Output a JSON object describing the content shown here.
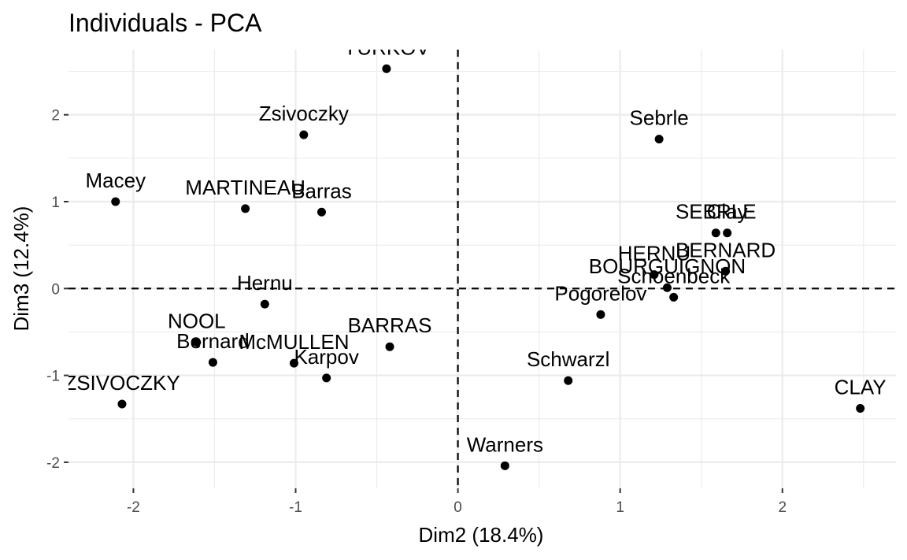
{
  "chart_data": {
    "type": "scatter",
    "title": "Individuals - PCA",
    "xlabel": "Dim2 (18.4%)",
    "ylabel": "Dim3 (12.4%)",
    "xlim": [
      -2.4,
      2.7
    ],
    "ylim": [
      -2.3,
      2.75
    ],
    "x_ticks": [
      -2,
      -1,
      0,
      1,
      2
    ],
    "y_ticks": [
      -2,
      -1,
      0,
      1,
      2
    ],
    "reference_lines": {
      "x": 0,
      "y": 0,
      "style": "dashed"
    },
    "grid": true,
    "points": [
      {
        "label": "YURKOV",
        "x": -0.44,
        "y": 2.53
      },
      {
        "label": "Zsivoczky",
        "x": -0.95,
        "y": 1.77
      },
      {
        "label": "Sebrle",
        "x": 1.24,
        "y": 1.72
      },
      {
        "label": "Macey",
        "x": -2.11,
        "y": 1.0
      },
      {
        "label": "MARTINEAU",
        "x": -1.31,
        "y": 0.92
      },
      {
        "label": "Barras",
        "x": -0.84,
        "y": 0.88
      },
      {
        "label": "SEBRLE",
        "x": 1.59,
        "y": 0.64
      },
      {
        "label": "Clay",
        "x": 1.66,
        "y": 0.64
      },
      {
        "label": "BERNARD",
        "x": 1.65,
        "y": 0.2
      },
      {
        "label": "HERNU",
        "x": 1.21,
        "y": 0.16
      },
      {
        "label": "BOURGUIGNON",
        "x": 1.29,
        "y": 0.01
      },
      {
        "label": "Schoenbeck",
        "x": 1.33,
        "y": -0.1
      },
      {
        "label": "Hernu",
        "x": -1.19,
        "y": -0.18
      },
      {
        "label": "Pogorelov",
        "x": 0.88,
        "y": -0.3
      },
      {
        "label": "NOOL",
        "x": -1.61,
        "y": -0.62
      },
      {
        "label": "BARRAS",
        "x": -0.42,
        "y": -0.67
      },
      {
        "label": "Bernard",
        "x": -1.51,
        "y": -0.85
      },
      {
        "label": "McMULLEN",
        "x": -1.01,
        "y": -0.86
      },
      {
        "label": "Karpov",
        "x": -0.81,
        "y": -1.03
      },
      {
        "label": "Schwarzl",
        "x": 0.68,
        "y": -1.06
      },
      {
        "label": "ZSIVOCZKY",
        "x": -2.07,
        "y": -1.33
      },
      {
        "label": "CLAY",
        "x": 2.48,
        "y": -1.38
      },
      {
        "label": "Warners",
        "x": 0.29,
        "y": -2.04
      }
    ]
  }
}
